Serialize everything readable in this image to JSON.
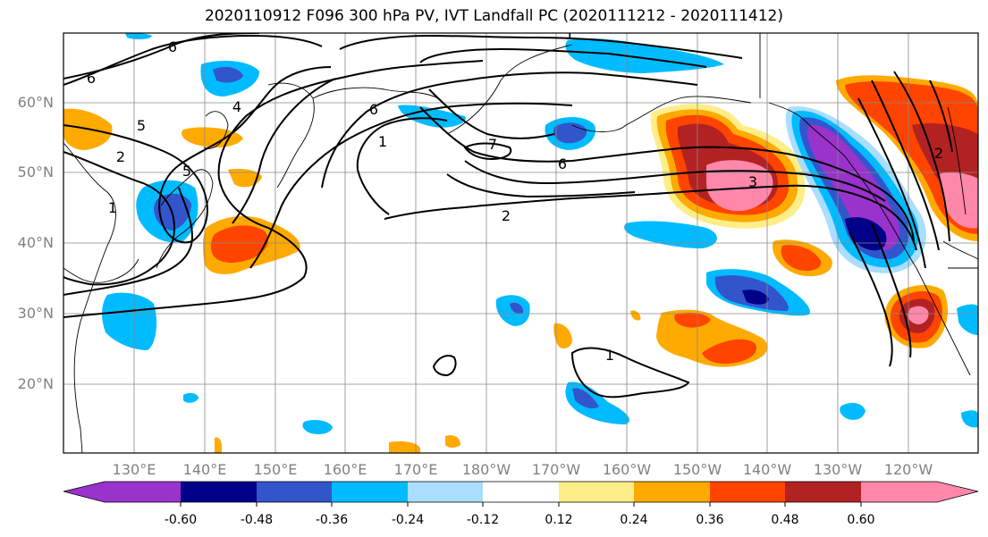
{
  "title": "2020110912 F096 300 hPa PV, IVT Landfall PC (2020111212 - 2020111412)",
  "lat_labels": [
    "60°N",
    "50°N",
    "40°N",
    "30°N",
    "20°N"
  ],
  "lon_labels": [
    "130°E",
    "140°E",
    "150°E",
    "160°E",
    "170°E",
    "180°W",
    "170°W",
    "160°W",
    "150°W",
    "140°W",
    "130°W",
    "120°W"
  ],
  "contour_labels": [
    "6",
    "6",
    "5",
    "4",
    "2",
    "1",
    "5",
    "6",
    "1",
    "7",
    "6",
    "3",
    "2",
    "1",
    "2",
    "1"
  ],
  "colorbar": {
    "colors": [
      "#9933cc",
      "#000088",
      "#3355cc",
      "#00bbff",
      "#aaddff",
      "#ffffff",
      "#ffee88",
      "#ffaa00",
      "#ff4400",
      "#b22222",
      "#ff88aa"
    ],
    "tick_labels": [
      "-0.60",
      "-0.48",
      "-0.36",
      "-0.24",
      "-0.12",
      "0.12",
      "0.24",
      "0.36",
      "0.48",
      "0.60"
    ]
  }
}
